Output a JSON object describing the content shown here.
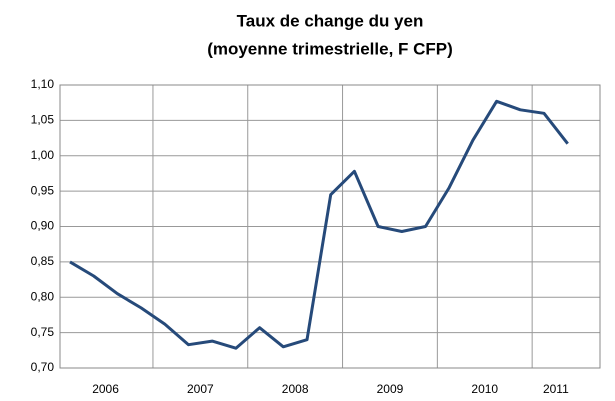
{
  "chart_data": {
    "type": "line",
    "title": [
      "Taux de change du yen",
      "(moyenne trimestrielle,  F CFP)"
    ],
    "categories": [
      "2006",
      null,
      null,
      null,
      "2007",
      null,
      null,
      null,
      "2008",
      null,
      null,
      null,
      "2009",
      null,
      null,
      null,
      "2010",
      null,
      null,
      null,
      "2011",
      null
    ],
    "series": [
      {
        "name": "Yen",
        "color": "#264a7a",
        "values": [
          0.85,
          0.83,
          0.805,
          0.785,
          0.762,
          0.733,
          0.738,
          0.728,
          0.757,
          0.73,
          0.74,
          0.945,
          0.978,
          0.9,
          0.893,
          0.9,
          0.955,
          1.022,
          1.077,
          1.065,
          1.06,
          1.017
        ]
      }
    ],
    "ylim": [
      0.7,
      1.1
    ],
    "yticks": [
      {
        "value": 0.7,
        "label": "0,70"
      },
      {
        "value": 0.75,
        "label": "0,75"
      },
      {
        "value": 0.8,
        "label": "0,80"
      },
      {
        "value": 0.85,
        "label": "0,85"
      },
      {
        "value": 0.9,
        "label": "0,90"
      },
      {
        "value": 0.95,
        "label": "0,95"
      },
      {
        "value": 1.0,
        "label": "1,00"
      },
      {
        "value": 1.05,
        "label": "1,05"
      },
      {
        "value": 1.1,
        "label": "1,10"
      }
    ],
    "grid": true
  }
}
